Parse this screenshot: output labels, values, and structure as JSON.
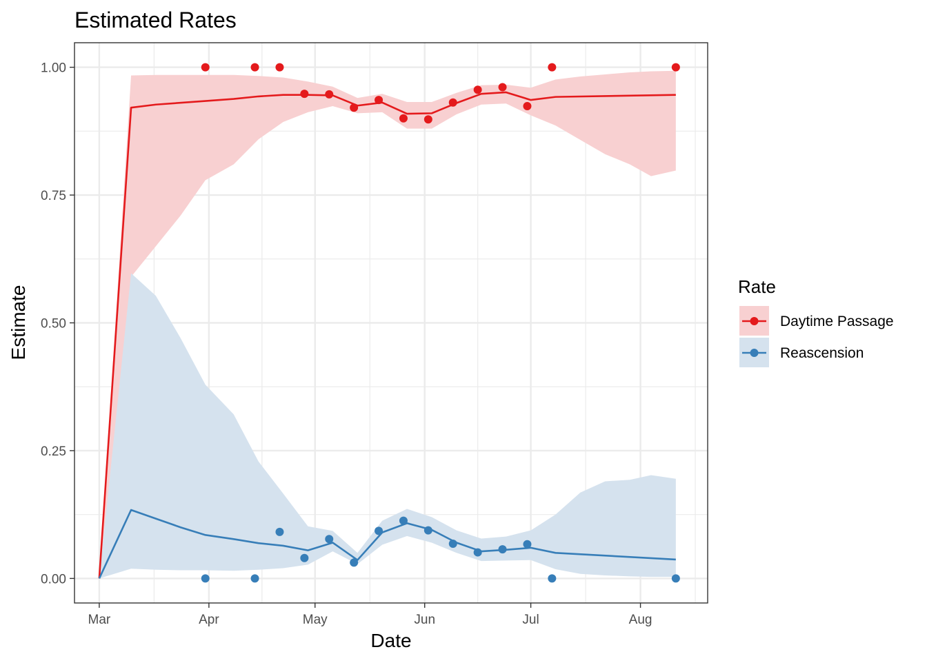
{
  "chart_data": {
    "type": "line",
    "title": "Estimated Rates",
    "xlabel": "Date",
    "ylabel": "Estimate",
    "x_ticks": [
      {
        "date": "2023-03-01",
        "label": "Mar"
      },
      {
        "date": "2023-04-01",
        "label": "Apr"
      },
      {
        "date": "2023-05-01",
        "label": "May"
      },
      {
        "date": "2023-06-01",
        "label": "Jun"
      },
      {
        "date": "2023-07-01",
        "label": "Jul"
      },
      {
        "date": "2023-08-01",
        "label": "Aug"
      }
    ],
    "xlim": [
      "2023-02-22",
      "2023-08-20"
    ],
    "y_ticks": [
      0,
      0.25,
      0.5,
      0.75,
      1.0
    ],
    "y_tick_labels": [
      "0.00",
      "0.25",
      "0.50",
      "0.75",
      "1.00"
    ],
    "ylim": [
      -0.048,
      1.048
    ],
    "grid": true,
    "legend": {
      "title": "Rate",
      "position": "right"
    },
    "series": [
      {
        "name": "Daytime Passage",
        "color": "#e41a1c",
        "ribbon_color": "#f8d0d1",
        "line": [
          {
            "x": "2023-03-01",
            "y": 0.0
          },
          {
            "x": "2023-03-10",
            "y": 0.921
          },
          {
            "x": "2023-03-17",
            "y": 0.927
          },
          {
            "x": "2023-03-31",
            "y": 0.934
          },
          {
            "x": "2023-04-08",
            "y": 0.938
          },
          {
            "x": "2023-04-15",
            "y": 0.943
          },
          {
            "x": "2023-04-22",
            "y": 0.946
          },
          {
            "x": "2023-04-29",
            "y": 0.946
          },
          {
            "x": "2023-05-06",
            "y": 0.945
          },
          {
            "x": "2023-05-13",
            "y": 0.925
          },
          {
            "x": "2023-05-20",
            "y": 0.931
          },
          {
            "x": "2023-05-27",
            "y": 0.909
          },
          {
            "x": "2023-06-03",
            "y": 0.91
          },
          {
            "x": "2023-06-10",
            "y": 0.93
          },
          {
            "x": "2023-06-17",
            "y": 0.948
          },
          {
            "x": "2023-06-24",
            "y": 0.951
          },
          {
            "x": "2023-07-01",
            "y": 0.936
          },
          {
            "x": "2023-07-08",
            "y": 0.942
          },
          {
            "x": "2023-08-11",
            "y": 0.946
          }
        ],
        "ribbon": [
          {
            "x": "2023-03-01",
            "lo": 0.0,
            "hi": 0.0
          },
          {
            "x": "2023-03-10",
            "lo": 0.59,
            "hi": 0.984
          },
          {
            "x": "2023-03-17",
            "lo": 0.65,
            "hi": 0.985
          },
          {
            "x": "2023-03-24",
            "lo": 0.71,
            "hi": 0.985
          },
          {
            "x": "2023-03-31",
            "lo": 0.779,
            "hi": 0.985
          },
          {
            "x": "2023-04-08",
            "lo": 0.81,
            "hi": 0.985
          },
          {
            "x": "2023-04-15",
            "lo": 0.859,
            "hi": 0.983
          },
          {
            "x": "2023-04-22",
            "lo": 0.893,
            "hi": 0.98
          },
          {
            "x": "2023-04-29",
            "lo": 0.912,
            "hi": 0.972
          },
          {
            "x": "2023-05-06",
            "lo": 0.924,
            "hi": 0.962
          },
          {
            "x": "2023-05-13",
            "lo": 0.91,
            "hi": 0.94
          },
          {
            "x": "2023-05-20",
            "lo": 0.912,
            "hi": 0.948
          },
          {
            "x": "2023-05-27",
            "lo": 0.88,
            "hi": 0.932
          },
          {
            "x": "2023-06-03",
            "lo": 0.88,
            "hi": 0.932
          },
          {
            "x": "2023-06-10",
            "lo": 0.908,
            "hi": 0.95
          },
          {
            "x": "2023-06-17",
            "lo": 0.927,
            "hi": 0.965
          },
          {
            "x": "2023-06-24",
            "lo": 0.929,
            "hi": 0.966
          },
          {
            "x": "2023-07-01",
            "lo": 0.906,
            "hi": 0.96
          },
          {
            "x": "2023-07-08",
            "lo": 0.886,
            "hi": 0.976
          },
          {
            "x": "2023-07-15",
            "lo": 0.858,
            "hi": 0.982
          },
          {
            "x": "2023-07-22",
            "lo": 0.83,
            "hi": 0.986
          },
          {
            "x": "2023-07-29",
            "lo": 0.81,
            "hi": 0.99
          },
          {
            "x": "2023-08-04",
            "lo": 0.787,
            "hi": 0.992
          },
          {
            "x": "2023-08-11",
            "lo": 0.798,
            "hi": 0.993
          }
        ],
        "points": [
          {
            "x": "2023-03-31",
            "y": 1.0
          },
          {
            "x": "2023-04-14",
            "y": 1.0
          },
          {
            "x": "2023-04-21",
            "y": 1.0
          },
          {
            "x": "2023-04-28",
            "y": 0.948
          },
          {
            "x": "2023-05-05",
            "y": 0.947
          },
          {
            "x": "2023-05-12",
            "y": 0.921
          },
          {
            "x": "2023-05-19",
            "y": 0.936
          },
          {
            "x": "2023-05-26",
            "y": 0.9
          },
          {
            "x": "2023-06-02",
            "y": 0.898
          },
          {
            "x": "2023-06-09",
            "y": 0.931
          },
          {
            "x": "2023-06-16",
            "y": 0.956
          },
          {
            "x": "2023-06-23",
            "y": 0.961
          },
          {
            "x": "2023-06-30",
            "y": 0.924
          },
          {
            "x": "2023-07-07",
            "y": 1.0
          },
          {
            "x": "2023-08-11",
            "y": 1.0
          }
        ]
      },
      {
        "name": "Reascension",
        "color": "#377eb8",
        "ribbon_color": "#d5e2ee",
        "line": [
          {
            "x": "2023-03-01",
            "y": 0.0
          },
          {
            "x": "2023-03-10",
            "y": 0.134
          },
          {
            "x": "2023-03-17",
            "y": 0.117
          },
          {
            "x": "2023-03-24",
            "y": 0.1
          },
          {
            "x": "2023-03-31",
            "y": 0.085
          },
          {
            "x": "2023-04-08",
            "y": 0.077
          },
          {
            "x": "2023-04-15",
            "y": 0.069
          },
          {
            "x": "2023-04-22",
            "y": 0.064
          },
          {
            "x": "2023-04-29",
            "y": 0.055
          },
          {
            "x": "2023-05-06",
            "y": 0.07
          },
          {
            "x": "2023-05-13",
            "y": 0.036
          },
          {
            "x": "2023-05-20",
            "y": 0.09
          },
          {
            "x": "2023-05-27",
            "y": 0.108
          },
          {
            "x": "2023-06-03",
            "y": 0.095
          },
          {
            "x": "2023-06-10",
            "y": 0.07
          },
          {
            "x": "2023-06-17",
            "y": 0.053
          },
          {
            "x": "2023-06-24",
            "y": 0.056
          },
          {
            "x": "2023-07-01",
            "y": 0.06
          },
          {
            "x": "2023-07-08",
            "y": 0.05
          },
          {
            "x": "2023-08-11",
            "y": 0.037
          }
        ],
        "ribbon": [
          {
            "x": "2023-03-01",
            "lo": 0.0,
            "hi": 0.0
          },
          {
            "x": "2023-03-10",
            "lo": 0.019,
            "hi": 0.597
          },
          {
            "x": "2023-03-17",
            "lo": 0.017,
            "hi": 0.553
          },
          {
            "x": "2023-03-24",
            "lo": 0.016,
            "hi": 0.47
          },
          {
            "x": "2023-03-31",
            "lo": 0.016,
            "hi": 0.379
          },
          {
            "x": "2023-04-08",
            "lo": 0.015,
            "hi": 0.321
          },
          {
            "x": "2023-04-15",
            "lo": 0.017,
            "hi": 0.229
          },
          {
            "x": "2023-04-22",
            "lo": 0.02,
            "hi": 0.166
          },
          {
            "x": "2023-04-29",
            "lo": 0.027,
            "hi": 0.102
          },
          {
            "x": "2023-05-06",
            "lo": 0.053,
            "hi": 0.093
          },
          {
            "x": "2023-05-13",
            "lo": 0.028,
            "hi": 0.05
          },
          {
            "x": "2023-05-20",
            "lo": 0.066,
            "hi": 0.113
          },
          {
            "x": "2023-05-27",
            "lo": 0.083,
            "hi": 0.136
          },
          {
            "x": "2023-06-03",
            "lo": 0.07,
            "hi": 0.12
          },
          {
            "x": "2023-06-10",
            "lo": 0.05,
            "hi": 0.094
          },
          {
            "x": "2023-06-17",
            "lo": 0.034,
            "hi": 0.078
          },
          {
            "x": "2023-06-24",
            "lo": 0.035,
            "hi": 0.082
          },
          {
            "x": "2023-07-01",
            "lo": 0.036,
            "hi": 0.094
          },
          {
            "x": "2023-07-08",
            "lo": 0.018,
            "hi": 0.125
          },
          {
            "x": "2023-07-15",
            "lo": 0.009,
            "hi": 0.168
          },
          {
            "x": "2023-07-22",
            "lo": 0.006,
            "hi": 0.19
          },
          {
            "x": "2023-07-29",
            "lo": 0.004,
            "hi": 0.193
          },
          {
            "x": "2023-08-04",
            "lo": 0.003,
            "hi": 0.202
          },
          {
            "x": "2023-08-11",
            "lo": 0.003,
            "hi": 0.195
          }
        ],
        "points": [
          {
            "x": "2023-03-31",
            "y": 0.0
          },
          {
            "x": "2023-04-14",
            "y": 0.0
          },
          {
            "x": "2023-04-21",
            "y": 0.091
          },
          {
            "x": "2023-04-28",
            "y": 0.04
          },
          {
            "x": "2023-05-05",
            "y": 0.077
          },
          {
            "x": "2023-05-12",
            "y": 0.031
          },
          {
            "x": "2023-05-19",
            "y": 0.093
          },
          {
            "x": "2023-05-26",
            "y": 0.113
          },
          {
            "x": "2023-06-02",
            "y": 0.094
          },
          {
            "x": "2023-06-09",
            "y": 0.068
          },
          {
            "x": "2023-06-16",
            "y": 0.051
          },
          {
            "x": "2023-06-23",
            "y": 0.057
          },
          {
            "x": "2023-06-30",
            "y": 0.067
          },
          {
            "x": "2023-07-07",
            "y": 0.0
          },
          {
            "x": "2023-08-11",
            "y": 0.0
          }
        ]
      }
    ]
  }
}
